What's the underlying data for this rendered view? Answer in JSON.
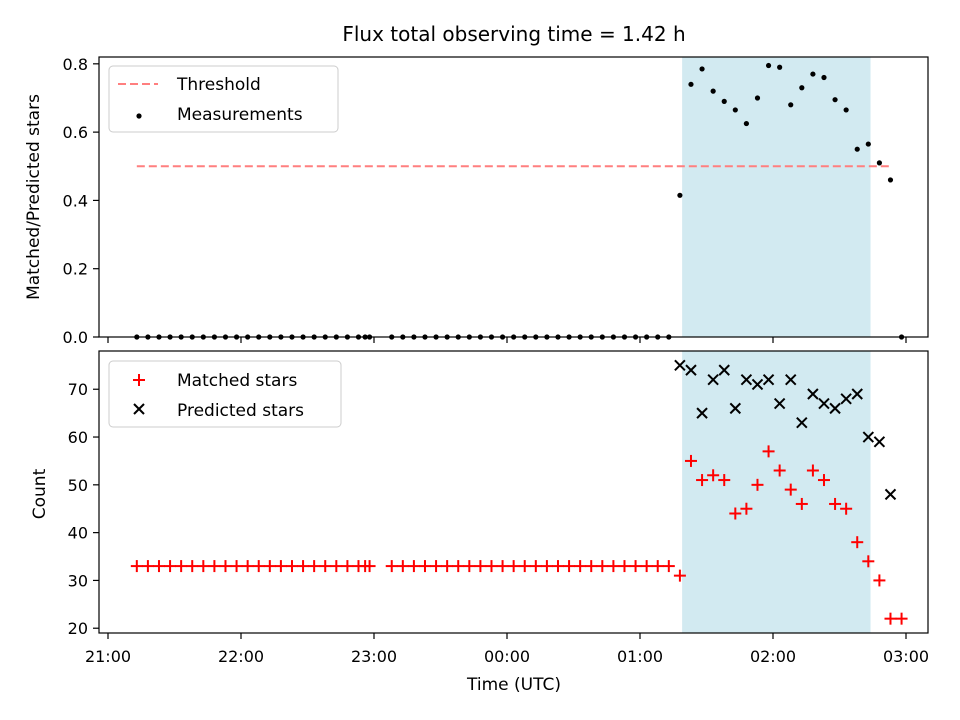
{
  "chart_data": [
    {
      "type": "scatter",
      "title": "Flux total observing time = 1.42 h",
      "xlabel": "",
      "ylabel": "Matched/Predicted stars",
      "x_range": [
        "21:00",
        "03:00"
      ],
      "ylim": [
        0,
        0.82
      ],
      "y_ticks": [
        "0.0",
        "0.2",
        "0.4",
        "0.6",
        "0.8"
      ],
      "grid": false,
      "legend_position": "top-left",
      "highlight_span": {
        "start": "01:19",
        "end": "02:44",
        "color": "#add8e6"
      },
      "threshold": {
        "name": "Threshold",
        "value": 0.5,
        "x_start": "21:13",
        "x_end": "02:53",
        "color": "#ff7f7f"
      },
      "series": [
        {
          "name": "Measurements",
          "marker": "dot",
          "color": "#000000",
          "points": [
            [
              "21:13",
              0.0
            ],
            [
              "21:18",
              0.0
            ],
            [
              "21:23",
              0.0
            ],
            [
              "21:28",
              0.0
            ],
            [
              "21:33",
              0.0
            ],
            [
              "21:38",
              0.0
            ],
            [
              "21:43",
              0.0
            ],
            [
              "21:48",
              0.0
            ],
            [
              "21:53",
              0.0
            ],
            [
              "21:58",
              0.0
            ],
            [
              "22:03",
              0.0
            ],
            [
              "22:08",
              0.0
            ],
            [
              "22:13",
              0.0
            ],
            [
              "22:18",
              0.0
            ],
            [
              "22:23",
              0.0
            ],
            [
              "22:28",
              0.0
            ],
            [
              "22:33",
              0.0
            ],
            [
              "22:38",
              0.0
            ],
            [
              "22:43",
              0.0
            ],
            [
              "22:48",
              0.0
            ],
            [
              "22:53",
              0.0
            ],
            [
              "22:56",
              0.0
            ],
            [
              "22:58",
              0.0
            ],
            [
              "23:08",
              0.0
            ],
            [
              "23:13",
              0.0
            ],
            [
              "23:18",
              0.0
            ],
            [
              "23:23",
              0.0
            ],
            [
              "23:28",
              0.0
            ],
            [
              "23:33",
              0.0
            ],
            [
              "23:38",
              0.0
            ],
            [
              "23:43",
              0.0
            ],
            [
              "23:48",
              0.0
            ],
            [
              "23:53",
              0.0
            ],
            [
              "23:58",
              0.0
            ],
            [
              "00:03",
              0.0
            ],
            [
              "00:08",
              0.0
            ],
            [
              "00:13",
              0.0
            ],
            [
              "00:18",
              0.0
            ],
            [
              "00:23",
              0.0
            ],
            [
              "00:28",
              0.0
            ],
            [
              "00:33",
              0.0
            ],
            [
              "00:38",
              0.0
            ],
            [
              "00:43",
              0.0
            ],
            [
              "00:48",
              0.0
            ],
            [
              "00:53",
              0.0
            ],
            [
              "00:58",
              0.0
            ],
            [
              "01:03",
              0.0
            ],
            [
              "01:08",
              0.0
            ],
            [
              "01:13",
              0.0
            ],
            [
              "01:18",
              0.415
            ],
            [
              "01:23",
              0.74
            ],
            [
              "01:28",
              0.785
            ],
            [
              "01:33",
              0.72
            ],
            [
              "01:38",
              0.69
            ],
            [
              "01:43",
              0.665
            ],
            [
              "01:48",
              0.625
            ],
            [
              "01:53",
              0.7
            ],
            [
              "01:58",
              0.795
            ],
            [
              "02:03",
              0.79
            ],
            [
              "02:08",
              0.68
            ],
            [
              "02:13",
              0.73
            ],
            [
              "02:18",
              0.77
            ],
            [
              "02:23",
              0.76
            ],
            [
              "02:28",
              0.695
            ],
            [
              "02:33",
              0.665
            ],
            [
              "02:38",
              0.55
            ],
            [
              "02:43",
              0.565
            ],
            [
              "02:48",
              0.51
            ],
            [
              "02:53",
              0.46
            ],
            [
              "02:58",
              0.0
            ]
          ]
        }
      ]
    },
    {
      "type": "scatter",
      "title": "",
      "xlabel": "Time (UTC)",
      "ylabel": "Count",
      "x_ticks": [
        "21:00",
        "22:00",
        "23:00",
        "00:00",
        "01:00",
        "02:00",
        "03:00"
      ],
      "x_range": [
        "21:00",
        "03:00"
      ],
      "ylim": [
        19,
        78
      ],
      "y_ticks": [
        "20",
        "30",
        "40",
        "50",
        "60",
        "70"
      ],
      "grid": false,
      "legend_position": "top-left",
      "highlight_span": {
        "start": "01:19",
        "end": "02:44",
        "color": "#add8e6"
      },
      "series": [
        {
          "name": "Matched stars",
          "marker": "plus",
          "color": "#ff0000",
          "points": [
            [
              "21:13",
              33
            ],
            [
              "21:18",
              33
            ],
            [
              "21:23",
              33
            ],
            [
              "21:28",
              33
            ],
            [
              "21:33",
              33
            ],
            [
              "21:38",
              33
            ],
            [
              "21:43",
              33
            ],
            [
              "21:48",
              33
            ],
            [
              "21:53",
              33
            ],
            [
              "21:58",
              33
            ],
            [
              "22:03",
              33
            ],
            [
              "22:08",
              33
            ],
            [
              "22:13",
              33
            ],
            [
              "22:18",
              33
            ],
            [
              "22:23",
              33
            ],
            [
              "22:28",
              33
            ],
            [
              "22:33",
              33
            ],
            [
              "22:38",
              33
            ],
            [
              "22:43",
              33
            ],
            [
              "22:48",
              33
            ],
            [
              "22:53",
              33
            ],
            [
              "22:56",
              33
            ],
            [
              "22:58",
              33
            ],
            [
              "23:08",
              33
            ],
            [
              "23:13",
              33
            ],
            [
              "23:18",
              33
            ],
            [
              "23:23",
              33
            ],
            [
              "23:28",
              33
            ],
            [
              "23:33",
              33
            ],
            [
              "23:38",
              33
            ],
            [
              "23:43",
              33
            ],
            [
              "23:48",
              33
            ],
            [
              "23:53",
              33
            ],
            [
              "23:58",
              33
            ],
            [
              "00:03",
              33
            ],
            [
              "00:08",
              33
            ],
            [
              "00:13",
              33
            ],
            [
              "00:18",
              33
            ],
            [
              "00:23",
              33
            ],
            [
              "00:28",
              33
            ],
            [
              "00:33",
              33
            ],
            [
              "00:38",
              33
            ],
            [
              "00:43",
              33
            ],
            [
              "00:48",
              33
            ],
            [
              "00:53",
              33
            ],
            [
              "00:58",
              33
            ],
            [
              "01:03",
              33
            ],
            [
              "01:08",
              33
            ],
            [
              "01:13",
              33
            ],
            [
              "01:18",
              31
            ],
            [
              "01:23",
              55
            ],
            [
              "01:28",
              51
            ],
            [
              "01:33",
              52
            ],
            [
              "01:38",
              51
            ],
            [
              "01:43",
              44
            ],
            [
              "01:48",
              45
            ],
            [
              "01:53",
              50
            ],
            [
              "01:58",
              57
            ],
            [
              "02:03",
              53
            ],
            [
              "02:08",
              49
            ],
            [
              "02:13",
              46
            ],
            [
              "02:18",
              53
            ],
            [
              "02:23",
              51
            ],
            [
              "02:28",
              46
            ],
            [
              "02:33",
              45
            ],
            [
              "02:38",
              38
            ],
            [
              "02:43",
              34
            ],
            [
              "02:48",
              30
            ],
            [
              "02:53",
              22
            ],
            [
              "02:58",
              22
            ]
          ]
        },
        {
          "name": "Predicted stars",
          "marker": "x",
          "color": "#000000",
          "points": [
            [
              "01:18",
              75
            ],
            [
              "01:23",
              74
            ],
            [
              "01:28",
              65
            ],
            [
              "01:33",
              72
            ],
            [
              "01:38",
              74
            ],
            [
              "01:43",
              66
            ],
            [
              "01:48",
              72
            ],
            [
              "01:53",
              71
            ],
            [
              "01:58",
              72
            ],
            [
              "02:03",
              67
            ],
            [
              "02:08",
              72
            ],
            [
              "02:13",
              63
            ],
            [
              "02:18",
              69
            ],
            [
              "02:23",
              67
            ],
            [
              "02:28",
              66
            ],
            [
              "02:33",
              68
            ],
            [
              "02:38",
              69
            ],
            [
              "02:43",
              60
            ],
            [
              "02:48",
              59
            ],
            [
              "02:53",
              48
            ]
          ]
        }
      ]
    }
  ]
}
